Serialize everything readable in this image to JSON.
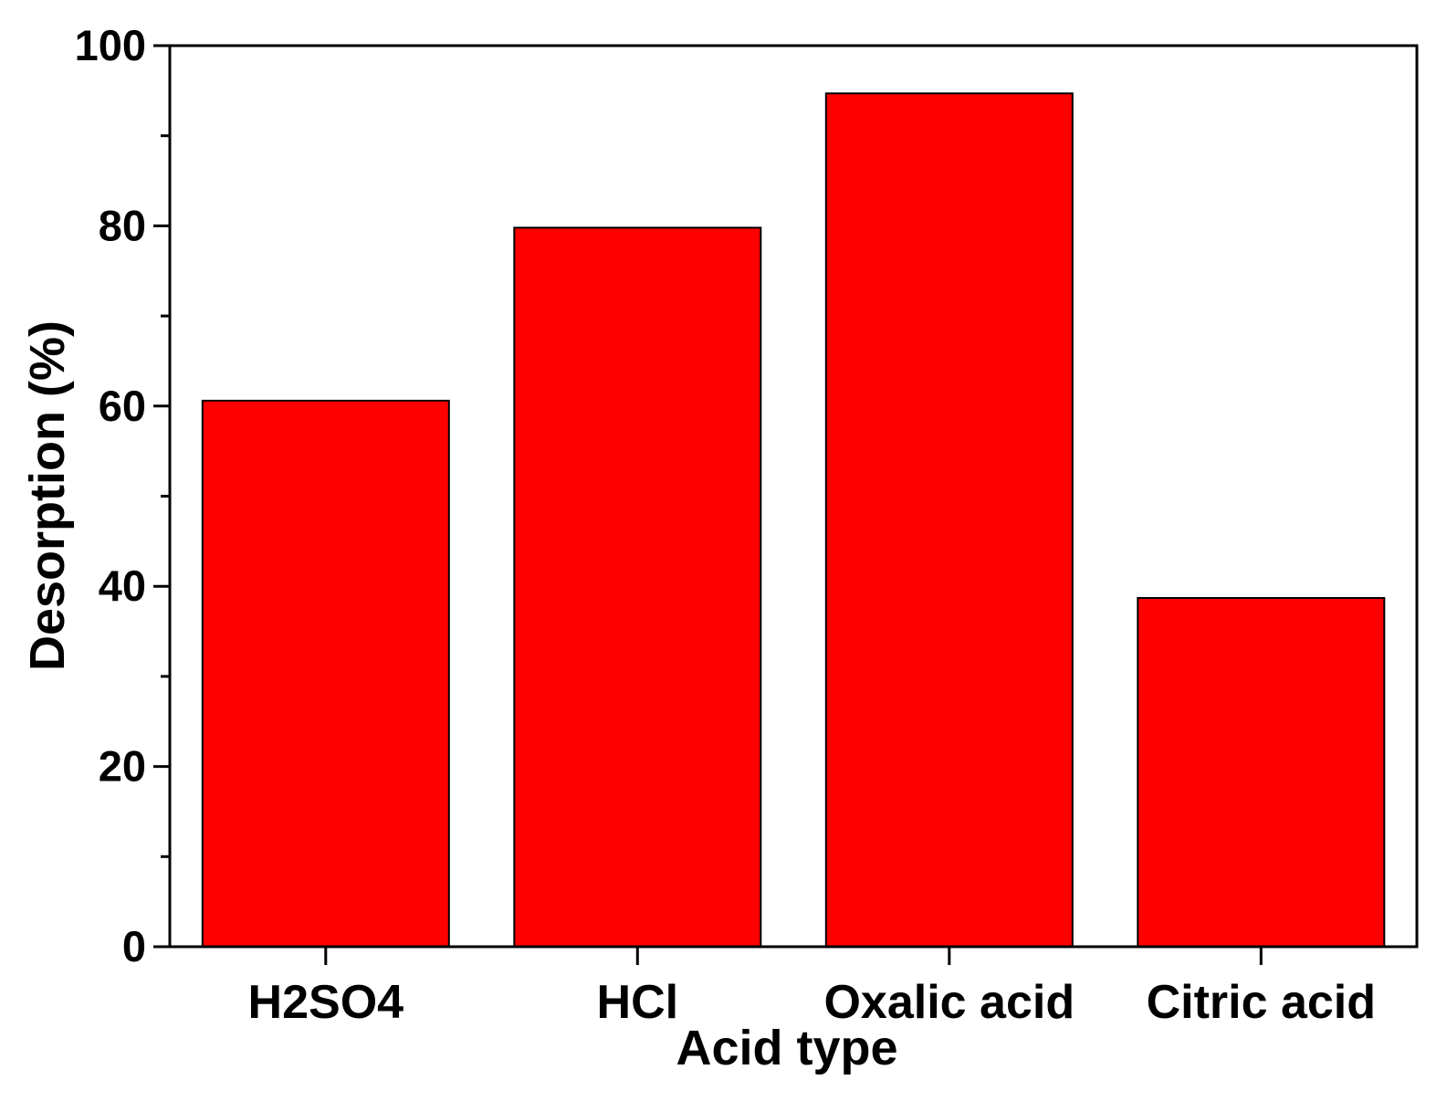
{
  "chart_data": {
    "type": "bar",
    "categories": [
      "H2SO4",
      "HCl",
      "Oxalic acid",
      "Citric acid"
    ],
    "values": [
      60.6,
      79.8,
      94.7,
      38.7
    ],
    "xlabel": "Acid type",
    "ylabel": "Desorption (%)",
    "ylim": [
      0,
      100
    ],
    "yticks": [
      0,
      20,
      40,
      60,
      80,
      100
    ],
    "yticks_labels": [
      "0",
      "20",
      "40",
      "60",
      "80",
      "100"
    ],
    "minor_ytick_step": 10,
    "bar_color": "#FF0000",
    "bar_edge_color": "#000000",
    "grid": false,
    "legend": "none"
  }
}
